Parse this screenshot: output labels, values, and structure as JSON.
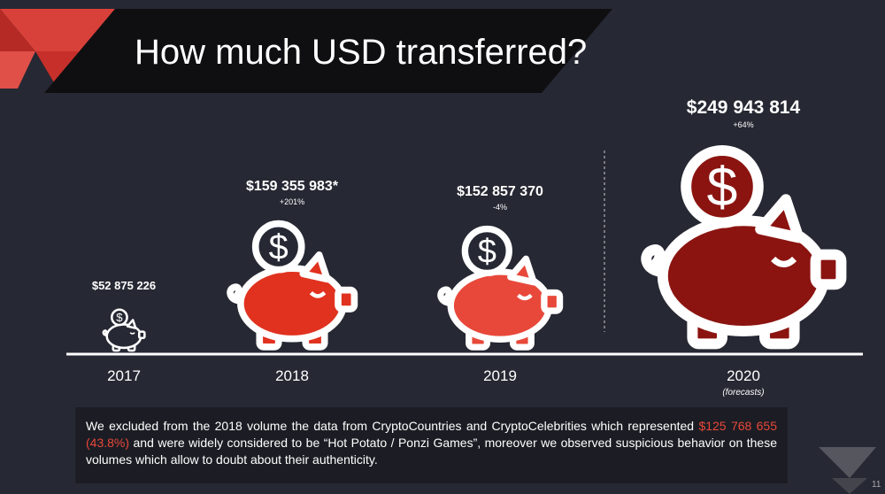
{
  "title": "How much USD transferred?",
  "chart_data": {
    "type": "pictograph",
    "categories": [
      "2017",
      "2018",
      "2019",
      "2020"
    ],
    "values": [
      52875226,
      159355983,
      152857370,
      249943814
    ],
    "value_labels": [
      "$52 875 226",
      "$159 355 983*",
      "$152 857 370",
      "$249 943 814"
    ],
    "change_labels": [
      null,
      "+201%",
      "-4%",
      "+64%"
    ],
    "colors": [
      "#262833",
      "#e0321f",
      "#e8483a",
      "#8b1410"
    ],
    "annotation": "(forecasts)"
  },
  "footnote": [
    "We excluded from the 2018 volume the data from CryptoCountries and CryptoCelebrities which represented ",
    "$125 768 655 (43.8%)",
    " and were widely considered to be “Hot Potato / Ponzi Games”, moreover we observed suspicious behavior on these volumes which allow to doubt about their authenticity."
  ],
  "page_number": "11"
}
